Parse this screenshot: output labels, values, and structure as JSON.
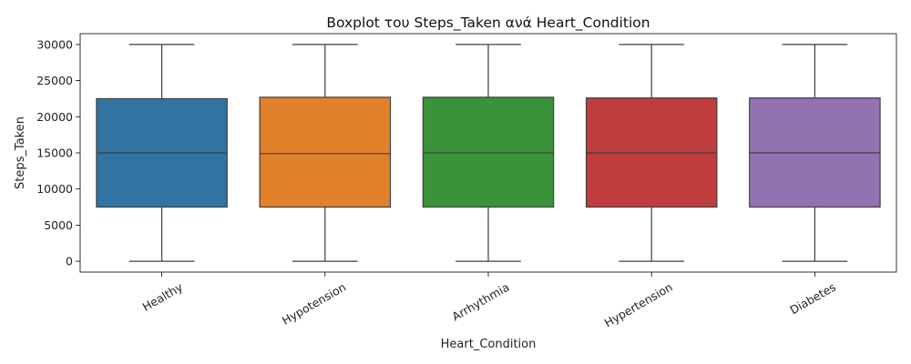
{
  "chart_data": {
    "type": "boxplot",
    "title": "Boxplot του Steps_Taken ανά Heart_Condition",
    "xlabel": "Heart_Condition",
    "ylabel": "Steps_Taken",
    "ylim": [
      -1500,
      31500
    ],
    "yticks": [
      0,
      5000,
      10000,
      15000,
      20000,
      25000,
      30000
    ],
    "grid": false,
    "legend": "none",
    "categories": [
      "Healthy",
      "Hypotension",
      "Arrhythmia",
      "Hypertension",
      "Diabetes"
    ],
    "colors": [
      "#3274a1",
      "#e1812c",
      "#3a923a",
      "#c03d3e",
      "#9372b2"
    ],
    "boxes": [
      {
        "category": "Healthy",
        "min": 0,
        "q1": 7500,
        "median": 15000,
        "q3": 22500,
        "max": 30000
      },
      {
        "category": "Hypotension",
        "min": 0,
        "q1": 7500,
        "median": 14900,
        "q3": 22700,
        "max": 30000
      },
      {
        "category": "Arrhythmia",
        "min": 0,
        "q1": 7500,
        "median": 15000,
        "q3": 22700,
        "max": 30000
      },
      {
        "category": "Hypertension",
        "min": 0,
        "q1": 7500,
        "median": 15000,
        "q3": 22600,
        "max": 30000
      },
      {
        "category": "Diabetes",
        "min": 0,
        "q1": 7500,
        "median": 15000,
        "q3": 22600,
        "max": 30000
      }
    ]
  }
}
